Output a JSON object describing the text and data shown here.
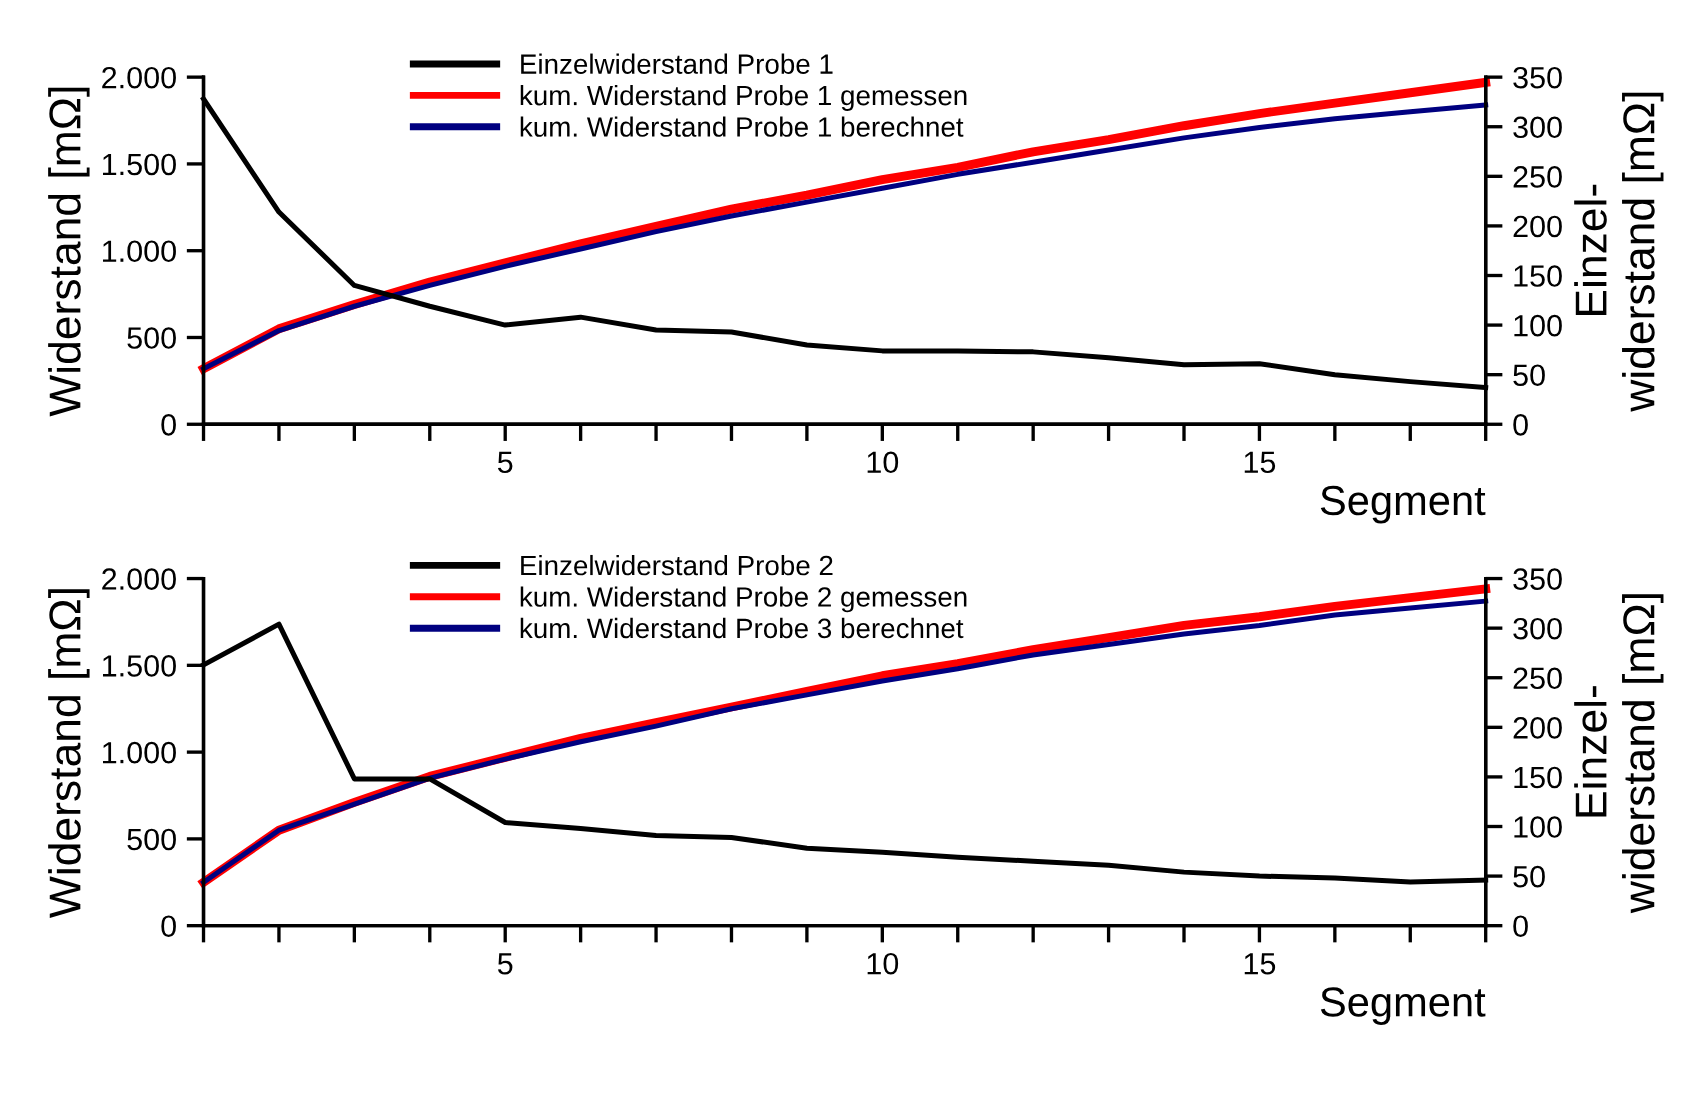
{
  "chart_data": [
    {
      "type": "line",
      "xlabel": "Segment",
      "ylabel": "Widerstand [mΩ]",
      "y2label": "Einzel-\nwiderstand [mΩ]",
      "x": [
        1,
        2,
        3,
        4,
        5,
        6,
        7,
        8,
        9,
        10,
        11,
        12,
        13,
        14,
        15,
        16,
        17,
        18
      ],
      "series": [
        {
          "name": "Einzelwiderstand Probe 1",
          "color": "#000000",
          "axis": "y2",
          "values": [
            328,
            214,
            140,
            119,
            100,
            108,
            95,
            93,
            80,
            74,
            74,
            73,
            67,
            60,
            61,
            50,
            43,
            37
          ]
        },
        {
          "name": "kum. Widerstand Probe 1 gemessen",
          "color": "#ff0000",
          "values": [
            320,
            550,
            690,
            820,
            930,
            1040,
            1140,
            1240,
            1320,
            1410,
            1480,
            1570,
            1640,
            1720,
            1790,
            1850,
            1910,
            1970
          ]
        },
        {
          "name": "kum. Widerstand Probe 1 berechnet",
          "color": "#000080",
          "values": [
            320,
            540,
            680,
            800,
            910,
            1010,
            1110,
            1200,
            1280,
            1360,
            1440,
            1510,
            1580,
            1650,
            1710,
            1760,
            1800,
            1840
          ]
        }
      ],
      "xlim": [
        1,
        18
      ],
      "xticks": [
        {
          "value": 1,
          "label": null
        },
        {
          "value": 2,
          "label": null
        },
        {
          "value": 3,
          "label": null
        },
        {
          "value": 4,
          "label": null
        },
        5,
        {
          "value": 6,
          "label": null
        },
        {
          "value": 7,
          "label": null
        },
        {
          "value": 8,
          "label": null
        },
        {
          "value": 9,
          "label": null
        },
        10,
        {
          "value": 11,
          "label": null
        },
        {
          "value": 12,
          "label": null
        },
        {
          "value": 13,
          "label": null
        },
        {
          "value": 14,
          "label": null
        },
        15,
        {
          "value": 16,
          "label": null
        },
        {
          "value": 17,
          "label": null
        },
        {
          "value": 18,
          "label": null
        }
      ],
      "ylim": [
        0,
        2000
      ],
      "yticks": [
        0,
        500,
        {
          "value": 1000,
          "label": "1.000"
        },
        {
          "value": 1500,
          "label": "1.500"
        },
        {
          "value": 2000,
          "label": "2.000"
        }
      ],
      "y2lim": [
        0,
        350
      ],
      "y2ticks": [
        0,
        50,
        100,
        150,
        200,
        250,
        300,
        350
      ],
      "grid": false,
      "legend": "top",
      "marker": "none",
      "line_style": "solid"
    },
    {
      "type": "line",
      "xlabel": "Segment",
      "ylabel": "Widerstand [mΩ]",
      "y2label": "Einzel-\nwiderstand [mΩ]",
      "x": [
        1,
        2,
        3,
        4,
        5,
        6,
        7,
        8,
        9,
        10,
        11,
        12,
        13,
        14,
        15,
        16,
        17,
        18
      ],
      "series": [
        {
          "name": "Einzelwiderstand Probe 2",
          "color": "#000000",
          "axis": "y2",
          "values": [
            263,
            304,
            148,
            148,
            104,
            98,
            91,
            89,
            78,
            74,
            69,
            65,
            61,
            54,
            50,
            48,
            44,
            46
          ]
        },
        {
          "name": "kum. Widerstand Probe 2 gemessen",
          "color": "#ff0000",
          "values": [
            250,
            550,
            710,
            860,
            970,
            1080,
            1170,
            1260,
            1350,
            1440,
            1510,
            1590,
            1660,
            1730,
            1780,
            1840,
            1890,
            1940
          ]
        },
        {
          "name": "kum. Widerstand Probe 3 berechnet",
          "color": "#000080",
          "values": [
            250,
            550,
            700,
            850,
            960,
            1060,
            1150,
            1250,
            1330,
            1410,
            1480,
            1560,
            1620,
            1680,
            1730,
            1790,
            1830,
            1870
          ]
        }
      ],
      "xlim": [
        1,
        18
      ],
      "xticks": [
        {
          "value": 1,
          "label": null
        },
        {
          "value": 2,
          "label": null
        },
        {
          "value": 3,
          "label": null
        },
        {
          "value": 4,
          "label": null
        },
        5,
        {
          "value": 6,
          "label": null
        },
        {
          "value": 7,
          "label": null
        },
        {
          "value": 8,
          "label": null
        },
        {
          "value": 9,
          "label": null
        },
        10,
        {
          "value": 11,
          "label": null
        },
        {
          "value": 12,
          "label": null
        },
        {
          "value": 13,
          "label": null
        },
        {
          "value": 14,
          "label": null
        },
        15,
        {
          "value": 16,
          "label": null
        },
        {
          "value": 17,
          "label": null
        },
        {
          "value": 18,
          "label": null
        }
      ],
      "ylim": [
        0,
        2000
      ],
      "yticks": [
        0,
        500,
        {
          "value": 1000,
          "label": "1.000"
        },
        {
          "value": 1500,
          "label": "1.500"
        },
        {
          "value": 2000,
          "label": "2.000"
        }
      ],
      "y2lim": [
        0,
        350
      ],
      "y2ticks": [
        0,
        50,
        100,
        150,
        200,
        250,
        300,
        350
      ],
      "grid": false,
      "legend": "top",
      "marker": "none",
      "line_style": "solid"
    }
  ]
}
